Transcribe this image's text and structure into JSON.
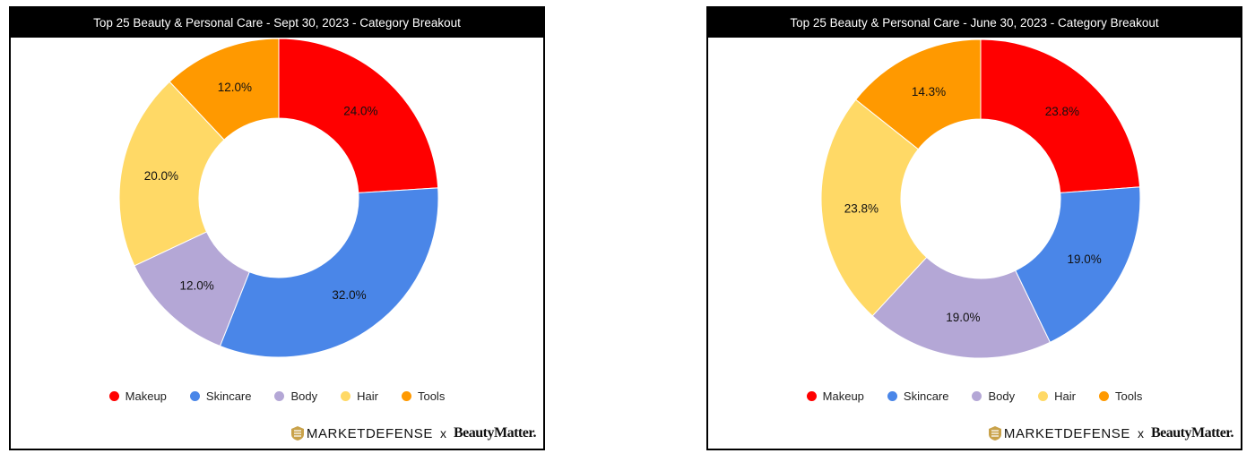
{
  "chart_data": [
    {
      "type": "pie",
      "title": "Top 25 Beauty & Personal Care - Sept 30, 2023 - Category Breakout",
      "categories": [
        "Makeup",
        "Skincare",
        "Body",
        "Hair",
        "Tools"
      ],
      "values": [
        24.0,
        32.0,
        12.0,
        20.0,
        12.0
      ],
      "labels": [
        "24.0%",
        "32.0%",
        "12.0%",
        "20.0%",
        "12.0%"
      ],
      "colors": [
        "#ff0000",
        "#4a86e8",
        "#b4a7d6",
        "#ffd966",
        "#ff9900"
      ],
      "donut": true,
      "legend": "bottom"
    },
    {
      "type": "pie",
      "title": "Top 25 Beauty & Personal Care - June 30, 2023 - Category Breakout",
      "categories": [
        "Makeup",
        "Skincare",
        "Body",
        "Hair",
        "Tools"
      ],
      "values": [
        23.8,
        19.0,
        19.0,
        23.8,
        14.3
      ],
      "labels": [
        "23.8%",
        "19.0%",
        "19.0%",
        "23.8%",
        "14.3%"
      ],
      "colors": [
        "#ff0000",
        "#4a86e8",
        "#b4a7d6",
        "#ffd966",
        "#ff9900"
      ],
      "donut": true,
      "legend": "bottom"
    }
  ],
  "branding": {
    "left": "MARKETDEFENSE",
    "separator": "x",
    "right": "BeautyMatter."
  },
  "icons": {
    "brand": "marketdefense-logo-icon"
  }
}
